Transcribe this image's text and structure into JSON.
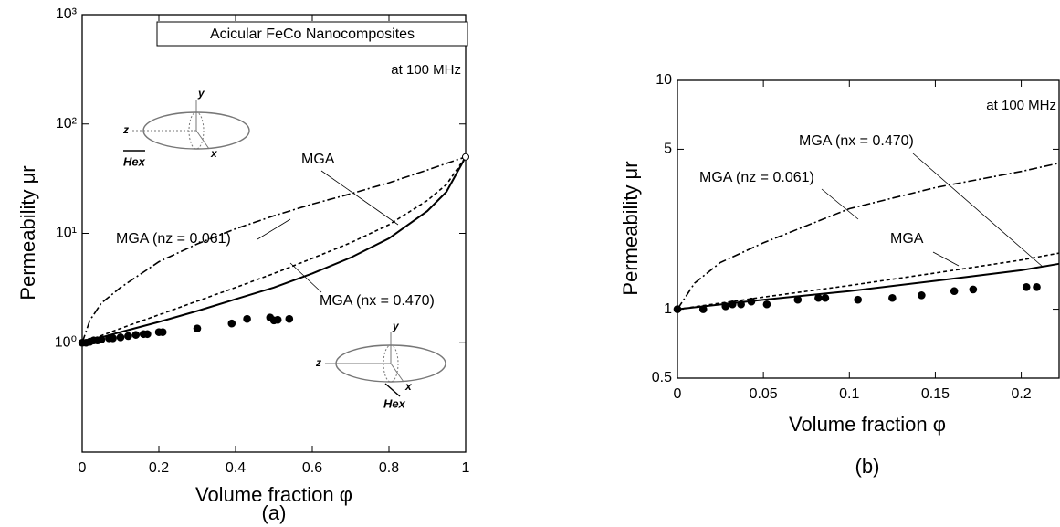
{
  "chart_data": [
    {
      "type": "line",
      "scale": "log",
      "title": "Acicular FeCo Nanocomposites",
      "subtitle": "at 100 MHz",
      "x_label": "Volume fraction φ",
      "y_label": "Permeability μr",
      "caption": "(a)",
      "xlim": [
        0,
        1
      ],
      "ylim": [
        0.1,
        1000
      ],
      "xticks": [
        0,
        0.2,
        0.4,
        0.6,
        0.8,
        1
      ],
      "yticks": [
        {
          "value": 1,
          "label": "10⁰"
        },
        {
          "value": 10,
          "label": "10¹"
        },
        {
          "value": 100,
          "label": "10²"
        },
        {
          "value": 1000,
          "label": "10³"
        }
      ],
      "series": [
        {
          "name": "MGA (nz = 0.061)",
          "dash": "dashdot",
          "color": "#000000",
          "x": [
            0,
            0.02,
            0.05,
            0.1,
            0.2,
            0.3,
            0.4,
            0.5,
            0.6,
            0.7,
            0.8,
            0.9,
            1
          ],
          "values": [
            1,
            1.6,
            2.3,
            3.2,
            5.5,
            8,
            11,
            14.5,
            18.5,
            23,
            29,
            38,
            50
          ]
        },
        {
          "name": "MGA",
          "dash": "dashed",
          "color": "#000000",
          "x": [
            0,
            0.1,
            0.2,
            0.3,
            0.4,
            0.5,
            0.6,
            0.7,
            0.8,
            0.9,
            0.95,
            1
          ],
          "values": [
            1,
            1.35,
            1.8,
            2.4,
            3.2,
            4.3,
            5.9,
            8.2,
            12,
            20,
            28,
            50
          ]
        },
        {
          "name": "MGA (nx = 0.470)",
          "dash": "solid",
          "color": "#000000",
          "x": [
            0,
            0.1,
            0.2,
            0.3,
            0.4,
            0.5,
            0.6,
            0.7,
            0.8,
            0.9,
            0.95,
            1
          ],
          "values": [
            1,
            1.25,
            1.55,
            1.95,
            2.5,
            3.2,
            4.3,
            6,
            9,
            16,
            24,
            50
          ]
        }
      ],
      "points": {
        "color": "#000000",
        "x": [
          0,
          0.01,
          0.02,
          0.03,
          0.04,
          0.05,
          0.07,
          0.08,
          0.1,
          0.12,
          0.14,
          0.16,
          0.17,
          0.2,
          0.21,
          0.3,
          0.39,
          0.43,
          0.49,
          0.5,
          0.51,
          0.54
        ],
        "values": [
          1,
          1,
          1.02,
          1.05,
          1.05,
          1.07,
          1.1,
          1.1,
          1.12,
          1.15,
          1.18,
          1.2,
          1.2,
          1.25,
          1.25,
          1.35,
          1.5,
          1.65,
          1.7,
          1.6,
          1.62,
          1.65
        ]
      },
      "open_point": {
        "x": 1,
        "value": 50
      },
      "insets": [
        [
          "y",
          "z",
          "x",
          "Hex"
        ],
        [
          "y",
          "z",
          "x",
          "Hex"
        ]
      ]
    },
    {
      "type": "line",
      "scale": "log",
      "subtitle": "at 100 MHz",
      "x_label": "Volume fraction φ",
      "y_label": "Permeability μr",
      "caption": "(b)",
      "xlim": [
        0,
        0.222
      ],
      "ylim": [
        0.5,
        10
      ],
      "xticks": [
        0,
        0.05,
        0.1,
        0.15,
        0.2
      ],
      "yticks": [
        0.5,
        1,
        5,
        10
      ],
      "series": [
        {
          "name": "MGA (nz = 0.061)",
          "dash": "dashdot",
          "color": "#000000",
          "x": [
            0,
            0.01,
            0.025,
            0.05,
            0.1,
            0.15,
            0.2,
            0.222
          ],
          "values": [
            1,
            1.3,
            1.6,
            1.95,
            2.75,
            3.4,
            4,
            4.35
          ]
        },
        {
          "name": "MGA",
          "dash": "dashed",
          "color": "#000000",
          "x": [
            0,
            0.05,
            0.1,
            0.15,
            0.2,
            0.222
          ],
          "values": [
            1,
            1.13,
            1.27,
            1.44,
            1.64,
            1.76
          ]
        },
        {
          "name": "MGA (nx = 0.470)",
          "dash": "solid",
          "color": "#000000",
          "x": [
            0,
            0.05,
            0.1,
            0.15,
            0.2,
            0.222
          ],
          "values": [
            1,
            1.1,
            1.2,
            1.33,
            1.48,
            1.58
          ]
        }
      ],
      "points": {
        "color": "#000000",
        "x": [
          0,
          0.015,
          0.028,
          0.032,
          0.037,
          0.043,
          0.052,
          0.07,
          0.082,
          0.086,
          0.105,
          0.125,
          0.142,
          0.161,
          0.172,
          0.203,
          0.209
        ],
        "values": [
          1,
          1,
          1.03,
          1.05,
          1.05,
          1.08,
          1.05,
          1.1,
          1.12,
          1.12,
          1.1,
          1.12,
          1.15,
          1.2,
          1.22,
          1.25,
          1.25
        ]
      }
    }
  ]
}
